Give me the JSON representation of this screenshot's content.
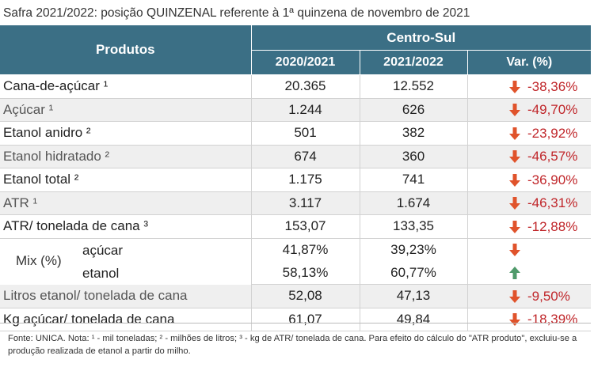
{
  "title": "Safra 2021/2022: posição QUINZENAL referente à 1ª quinzena de novembro de 2021",
  "table": {
    "header_products": "Produtos",
    "header_region": "Centro-Sul",
    "col_2020": "2020/2021",
    "col_2021": "2021/2022",
    "col_var": "Var. (%)",
    "rows": [
      {
        "name": "Cana-de-açúcar ¹",
        "v2020": "20.365",
        "v2021": "12.552",
        "var": "-38,36%",
        "direction": "down"
      },
      {
        "name": "Açúcar ¹",
        "v2020": "1.244",
        "v2021": "626",
        "var": "-49,70%",
        "direction": "down"
      },
      {
        "name": "Etanol anidro ²",
        "v2020": "501",
        "v2021": "382",
        "var": "-23,92%",
        "direction": "down"
      },
      {
        "name": "Etanol hidratado ²",
        "v2020": "674",
        "v2021": "360",
        "var": "-46,57%",
        "direction": "down"
      },
      {
        "name": "Etanol total ²",
        "v2020": "1.175",
        "v2021": "741",
        "var": "-36,90%",
        "direction": "down"
      },
      {
        "name": "ATR ¹",
        "v2020": "3.117",
        "v2021": "1.674",
        "var": "-46,31%",
        "direction": "down"
      },
      {
        "name": "ATR/ tonelada de cana ³",
        "v2020": "153,07",
        "v2021": "133,35",
        "var": "-12,88%",
        "direction": "down"
      }
    ],
    "mix": {
      "label": "Mix (%)",
      "acucar_label": "açúcar",
      "acucar_2020": "41,87%",
      "acucar_2021": "39,23%",
      "acucar_direction": "down",
      "etanol_label": "etanol",
      "etanol_2020": "58,13%",
      "etanol_2021": "60,77%",
      "etanol_direction": "up"
    },
    "rows_after": [
      {
        "name": "Litros etanol/ tonelada de cana",
        "v2020": "52,08",
        "v2021": "47,13",
        "var": "-9,50%",
        "direction": "down"
      },
      {
        "name": "Kg açúcar/ tonelada de cana",
        "v2020": "61,07",
        "v2021": "49,84",
        "var": "-18,39%",
        "direction": "down"
      }
    ]
  },
  "source_note": "Fonte: UNICA. Nota: ¹ - mil toneladas; ² - milhões de litros; ³ - kg de ATR/ tonelada de cana. Para efeito do cálculo do \"ATR produto\", excluiu-se a produção realizada de etanol a partir do milho.",
  "colors": {
    "header_bg": "#3b6f85",
    "down_arrow": "#e0532b",
    "up_arrow": "#4f9a6a",
    "negative_text": "#c0262a",
    "alt_row_bg": "#efefef"
  },
  "icons": {
    "down": "arrow-down-icon",
    "up": "arrow-up-icon"
  }
}
